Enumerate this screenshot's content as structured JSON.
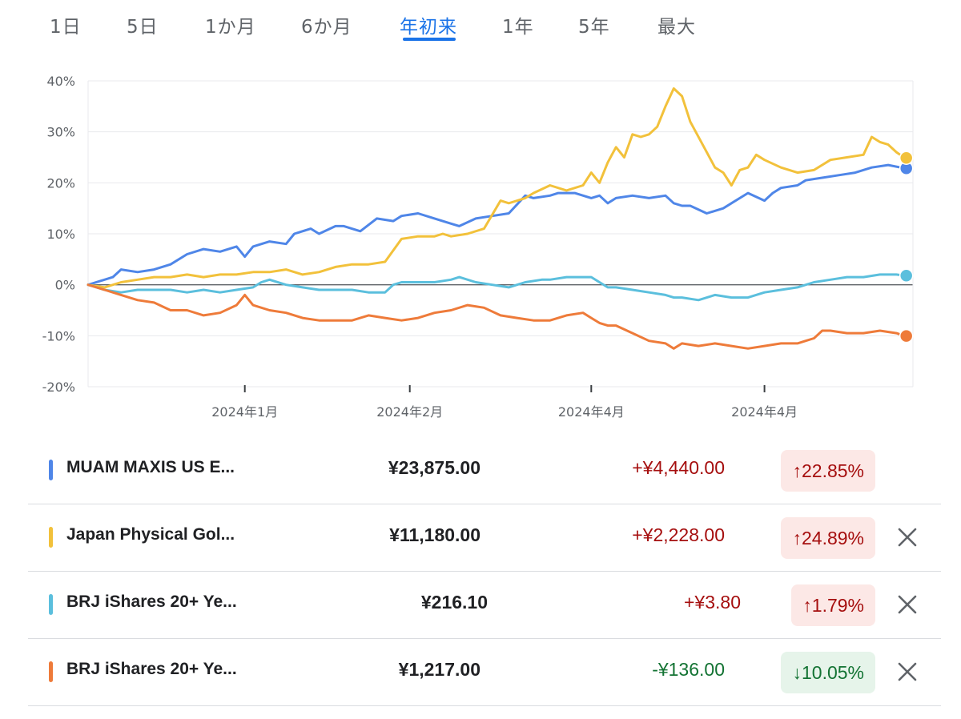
{
  "range_tabs": [
    {
      "label": "1日",
      "active": false
    },
    {
      "label": "5日",
      "active": false
    },
    {
      "label": "1か月",
      "active": false
    },
    {
      "label": "6か月",
      "active": false
    },
    {
      "label": "年初来",
      "active": true
    },
    {
      "label": "1年",
      "active": false
    },
    {
      "label": "5年",
      "active": false
    },
    {
      "label": "最大",
      "active": false
    }
  ],
  "chart_data": {
    "type": "line",
    "ylim": [
      -20,
      40
    ],
    "yticks": [
      40,
      30,
      20,
      10,
      0,
      -10,
      -20
    ],
    "ytick_labels": [
      "40%",
      "30%",
      "20%",
      "10%",
      "0%",
      "-10%",
      "-20%"
    ],
    "xlim": [
      0,
      100
    ],
    "xticks": [
      19,
      39,
      61,
      82
    ],
    "xtick_labels": [
      "2024年1月",
      "2024年2月",
      "2024年4月",
      "2024年4月"
    ],
    "grid": true,
    "zero_line": true,
    "series": [
      {
        "color": "#4f86e8",
        "x": [
          0,
          3,
          4,
          6,
          8,
          10,
          12,
          14,
          16,
          18,
          19,
          20,
          22,
          24,
          25,
          27,
          28,
          30,
          31,
          33,
          35,
          37,
          38,
          40,
          42,
          44,
          45,
          47,
          49,
          51,
          53,
          54,
          56,
          57,
          59,
          61,
          62,
          63,
          64,
          66,
          68,
          70,
          71,
          72,
          73,
          75,
          77,
          78,
          80,
          82,
          83,
          84,
          86,
          87,
          89,
          91,
          93,
          95,
          97,
          99
        ],
        "y": [
          0,
          1.5,
          3,
          2.5,
          3,
          4,
          6,
          7,
          6.5,
          7.5,
          5.5,
          7.5,
          8.5,
          8,
          10,
          11,
          10,
          11.5,
          11.5,
          10.5,
          13,
          12.5,
          13.5,
          14,
          13,
          12,
          11.5,
          13,
          13.5,
          14,
          17.5,
          17,
          17.5,
          18,
          18,
          17,
          17.5,
          16,
          17,
          17.5,
          17,
          17.5,
          16,
          15.5,
          15.5,
          14,
          15,
          16,
          18,
          16.5,
          18,
          19,
          19.5,
          20.5,
          21,
          21.5,
          22,
          23,
          23.5,
          22.85
        ]
      },
      {
        "color": "#f2c13b",
        "x": [
          0,
          2,
          4,
          6,
          8,
          10,
          12,
          14,
          16,
          18,
          20,
          22,
          24,
          26,
          28,
          30,
          32,
          34,
          36,
          38,
          40,
          42,
          43,
          44,
          46,
          48,
          50,
          51,
          53,
          54,
          56,
          58,
          60,
          61,
          62,
          63,
          64,
          65,
          66,
          67,
          68,
          69,
          70,
          71,
          72,
          73,
          75,
          76,
          77,
          78,
          79,
          80,
          81,
          82,
          84,
          86,
          88,
          90,
          92,
          94,
          95,
          96,
          97,
          98,
          99
        ],
        "y": [
          0,
          -0.5,
          0.5,
          1,
          1.5,
          1.5,
          2,
          1.5,
          2,
          2,
          2.5,
          2.5,
          3,
          2,
          2.5,
          3.5,
          4,
          4,
          4.5,
          9,
          9.5,
          9.5,
          10,
          9.5,
          10,
          11,
          16.5,
          16,
          17,
          18,
          19.5,
          18.5,
          19.5,
          22,
          20,
          24,
          27,
          25,
          29.5,
          29,
          29.5,
          31,
          35,
          38.5,
          37,
          32,
          26,
          23,
          22,
          19.5,
          22.5,
          23,
          25.5,
          24.5,
          23,
          22,
          22.5,
          24.5,
          25,
          25.5,
          29,
          28,
          27.5,
          26,
          24.89
        ]
      },
      {
        "color": "#5bbfdd",
        "x": [
          0,
          2,
          4,
          6,
          8,
          10,
          12,
          14,
          16,
          18,
          20,
          21,
          22,
          24,
          26,
          28,
          30,
          32,
          34,
          36,
          37,
          38,
          40,
          42,
          44,
          45,
          47,
          49,
          51,
          53,
          55,
          56,
          58,
          60,
          61,
          62,
          63,
          64,
          66,
          68,
          70,
          71,
          72,
          74,
          76,
          78,
          80,
          82,
          84,
          86,
          88,
          90,
          92,
          94,
          96,
          98,
          99
        ],
        "y": [
          0,
          -1,
          -1.5,
          -1,
          -1,
          -1,
          -1.5,
          -1,
          -1.5,
          -1,
          -0.5,
          0.5,
          1,
          0,
          -0.5,
          -1,
          -1,
          -1,
          -1.5,
          -1.5,
          0,
          0.5,
          0.5,
          0.5,
          1,
          1.5,
          0.5,
          0,
          -0.5,
          0.5,
          1,
          1,
          1.5,
          1.5,
          1.5,
          0.5,
          -0.5,
          -0.5,
          -1,
          -1.5,
          -2,
          -2.5,
          -2.5,
          -3,
          -2,
          -2.5,
          -2.5,
          -1.5,
          -1,
          -0.5,
          0.5,
          1,
          1.5,
          1.5,
          2,
          2,
          1.79
        ]
      },
      {
        "color": "#ee7b3a",
        "x": [
          0,
          2,
          4,
          6,
          8,
          10,
          12,
          14,
          16,
          18,
          19,
          20,
          22,
          24,
          26,
          28,
          30,
          32,
          34,
          36,
          38,
          40,
          42,
          44,
          46,
          48,
          50,
          52,
          54,
          56,
          58,
          60,
          61,
          62,
          63,
          64,
          66,
          68,
          70,
          71,
          72,
          74,
          76,
          78,
          80,
          82,
          84,
          86,
          87,
          88,
          89,
          90,
          92,
          94,
          96,
          98,
          99
        ],
        "y": [
          0,
          -1,
          -2,
          -3,
          -3.5,
          -5,
          -5,
          -6,
          -5.5,
          -4,
          -2,
          -4,
          -5,
          -5.5,
          -6.5,
          -7,
          -7,
          -7,
          -6,
          -6.5,
          -7,
          -6.5,
          -5.5,
          -5,
          -4,
          -4.5,
          -6,
          -6.5,
          -7,
          -7,
          -6,
          -5.5,
          -6.5,
          -7.5,
          -8,
          -8,
          -9.5,
          -11,
          -11.5,
          -12.5,
          -11.5,
          -12,
          -11.5,
          -12,
          -12.5,
          -12,
          -11.5,
          -11.5,
          -11,
          -10.5,
          -9,
          -9,
          -9.5,
          -9.5,
          -9,
          -9.5,
          -10.05
        ]
      }
    ]
  },
  "holdings": [
    {
      "name": "MUAM MAXIS US E...",
      "price": "¥23,875.00",
      "change": "+¥4,440.00",
      "direction": "up",
      "arrow": "↑",
      "percent": "22.85%",
      "color": "#4f86e8",
      "removable": false
    },
    {
      "name": "Japan Physical Gol...",
      "price": "¥11,180.00",
      "change": "+¥2,228.00",
      "direction": "up",
      "arrow": "↑",
      "percent": "24.89%",
      "color": "#f2c13b",
      "removable": true
    },
    {
      "name": "BRJ iShares 20+ Ye...",
      "price": "¥216.10",
      "change": "+¥3.80",
      "direction": "up",
      "arrow": "↑",
      "percent": "1.79%",
      "color": "#5bbfdd",
      "removable": true
    },
    {
      "name": "BRJ iShares 20+ Ye...",
      "price": "¥1,217.00",
      "change": "-¥136.00",
      "direction": "down",
      "arrow": "↓",
      "percent": "10.05%",
      "color": "#ee7b3a",
      "removable": true
    }
  ]
}
